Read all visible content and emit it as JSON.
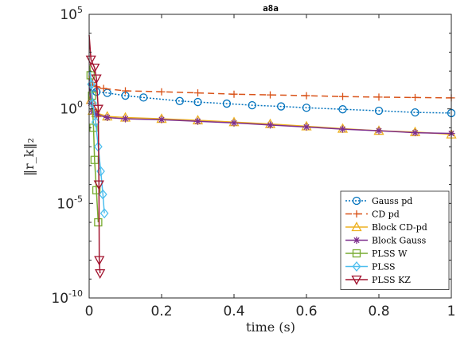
{
  "chart_data": {
    "type": "line",
    "title": "a8a",
    "xlabel": "time (s)",
    "ylabel": "‖r_k‖₂",
    "y_scale": "log",
    "xlim": [
      0,
      1
    ],
    "ylim_exponents": [
      -10,
      5
    ],
    "x_ticks": [
      "0",
      "0.2",
      "0.4",
      "0.6",
      "0.8",
      "1"
    ],
    "y_ticks": [
      {
        "base": "10",
        "exp": "5",
        "value_exp": 5
      },
      {
        "base": "10",
        "exp": "0",
        "value_exp": 0
      },
      {
        "base": "10",
        "exp": "-5",
        "value_exp": -5
      },
      {
        "base": "10",
        "exp": "-10",
        "value_exp": -10
      }
    ],
    "grid": false,
    "legend_placement": "bottom-right",
    "series": [
      {
        "name": "Gauss pd",
        "color": "#0072BD",
        "dash": "2,2",
        "marker": "circle",
        "points": [
          [
            0,
            30
          ],
          [
            0.01,
            12
          ],
          [
            0.02,
            8
          ],
          [
            0.05,
            7
          ],
          [
            0.1,
            5
          ],
          [
            0.15,
            4
          ],
          [
            0.25,
            2.6
          ],
          [
            0.3,
            2.3
          ],
          [
            0.38,
            1.9
          ],
          [
            0.45,
            1.55
          ],
          [
            0.53,
            1.35
          ],
          [
            0.6,
            1.15
          ],
          [
            0.7,
            0.95
          ],
          [
            0.8,
            0.8
          ],
          [
            0.9,
            0.65
          ],
          [
            1.0,
            0.6
          ]
        ]
      },
      {
        "name": "CD pd",
        "color": "#D95319",
        "dash": "8,5",
        "marker": "plus",
        "points": [
          [
            0,
            50
          ],
          [
            0.01,
            25
          ],
          [
            0.02,
            15
          ],
          [
            0.04,
            12
          ],
          [
            0.1,
            9
          ],
          [
            0.2,
            8
          ],
          [
            0.3,
            7
          ],
          [
            0.4,
            6
          ],
          [
            0.5,
            5.5
          ],
          [
            0.6,
            5
          ],
          [
            0.7,
            4.5
          ],
          [
            0.8,
            4.2
          ],
          [
            0.9,
            4
          ],
          [
            1.0,
            3.8
          ]
        ]
      },
      {
        "name": "Block CD-pd",
        "color": "#EDB120",
        "dash": "",
        "marker": "triangle",
        "points": [
          [
            0,
            60
          ],
          [
            0.005,
            3
          ],
          [
            0.01,
            0.8
          ],
          [
            0.02,
            0.6
          ],
          [
            0.05,
            0.4
          ],
          [
            0.1,
            0.35
          ],
          [
            0.2,
            0.3
          ],
          [
            0.3,
            0.25
          ],
          [
            0.4,
            0.2
          ],
          [
            0.5,
            0.16
          ],
          [
            0.6,
            0.12
          ],
          [
            0.7,
            0.09
          ],
          [
            0.8,
            0.07
          ],
          [
            0.9,
            0.06
          ],
          [
            1.0,
            0.045
          ]
        ]
      },
      {
        "name": "Block Gauss",
        "color": "#7E2F8E",
        "dash": "",
        "marker": "star",
        "points": [
          [
            0,
            40
          ],
          [
            0.005,
            2
          ],
          [
            0.01,
            0.7
          ],
          [
            0.02,
            0.5
          ],
          [
            0.05,
            0.35
          ],
          [
            0.1,
            0.3
          ],
          [
            0.2,
            0.27
          ],
          [
            0.3,
            0.22
          ],
          [
            0.4,
            0.18
          ],
          [
            0.5,
            0.14
          ],
          [
            0.6,
            0.11
          ],
          [
            0.7,
            0.085
          ],
          [
            0.8,
            0.07
          ],
          [
            0.9,
            0.055
          ],
          [
            1.0,
            0.05
          ]
        ]
      },
      {
        "name": "PLSS W",
        "color": "#77AC30",
        "dash": "",
        "marker": "square",
        "points": [
          [
            0.002,
            200
          ],
          [
            0.004,
            60
          ],
          [
            0.008,
            5
          ],
          [
            0.012,
            0.1
          ],
          [
            0.015,
            0.002
          ],
          [
            0.02,
            5e-05
          ],
          [
            0.025,
            1e-06
          ]
        ]
      },
      {
        "name": "PLSS",
        "color": "#4DBEEE",
        "dash": "",
        "marker": "diamond",
        "points": [
          [
            0.002,
            100
          ],
          [
            0.006,
            20
          ],
          [
            0.01,
            2
          ],
          [
            0.018,
            0.2
          ],
          [
            0.025,
            0.01
          ],
          [
            0.032,
            0.0005
          ],
          [
            0.038,
            3e-05
          ],
          [
            0.042,
            3e-06
          ]
        ]
      },
      {
        "name": "PLSS KZ",
        "color": "#A2142F",
        "dash": "",
        "marker": "triangle-down",
        "points": [
          [
            0,
            8000
          ],
          [
            0.005,
            400
          ],
          [
            0.015,
            150
          ],
          [
            0.02,
            40
          ],
          [
            0.025,
            1
          ],
          [
            0.027,
            0.0001
          ],
          [
            0.028,
            1e-08
          ],
          [
            0.03,
            2e-09
          ]
        ]
      }
    ]
  }
}
